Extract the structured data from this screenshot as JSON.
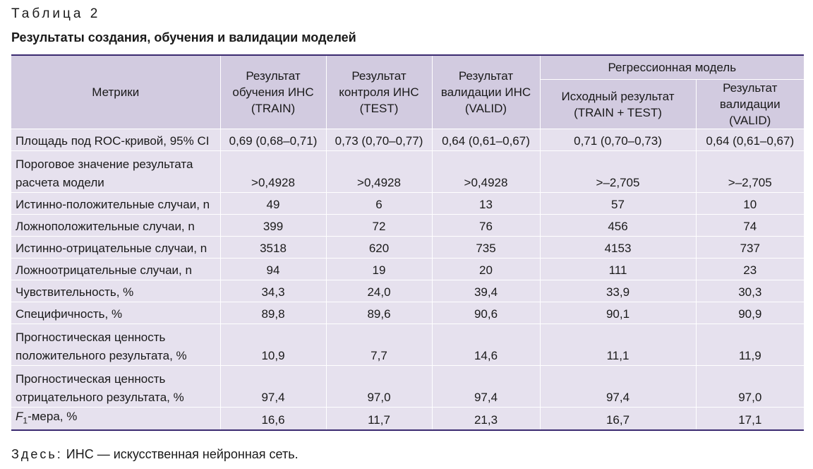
{
  "caption": "Таблица 2",
  "title": "Результаты создания, обучения и валидации моделей",
  "table": {
    "group_header": "Регрессионная модель",
    "headers": {
      "metrics": "Метрики",
      "train": [
        "Результат",
        "обучения ИНС",
        "(TRAIN)"
      ],
      "test": [
        "Результат",
        "контроля ИНС",
        "(TEST)"
      ],
      "valid": [
        "Результат",
        "валидации ИНС",
        "(VALID)"
      ],
      "reg_initial": [
        "Исходный результат",
        "(TRAIN + TEST)"
      ],
      "reg_valid": [
        "Результат",
        "валидации (VALID)"
      ]
    },
    "rows": [
      {
        "metric": [
          "Площадь под ROC-кривой, 95% CI"
        ],
        "values": [
          "0,69 (0,68–0,71)",
          "0,73 (0,70–0,77)",
          "0,64 (0,61–0,67)",
          "0,71 (0,70–0,73)",
          "0,64 (0,61–0,67)"
        ]
      },
      {
        "metric": [
          "Пороговое значение результата",
          "расчета модели"
        ],
        "values": [
          ">0,4928",
          ">0,4928",
          ">0,4928",
          ">–2,705",
          ">–2,705"
        ]
      },
      {
        "metric": [
          "Истинно-положительные случаи, n"
        ],
        "values": [
          "49",
          "6",
          "13",
          "57",
          "10"
        ]
      },
      {
        "metric": [
          "Ложноположительные случаи, n"
        ],
        "values": [
          "399",
          "72",
          "76",
          "456",
          "74"
        ]
      },
      {
        "metric": [
          "Истинно-отрицательные случаи, n"
        ],
        "values": [
          "3518",
          "620",
          "735",
          "4153",
          "737"
        ]
      },
      {
        "metric": [
          "Ложноотрицательные случаи, n"
        ],
        "values": [
          "94",
          "19",
          "20",
          "111",
          "23"
        ]
      },
      {
        "metric": [
          "Чувствительность, %"
        ],
        "values": [
          "34,3",
          "24,0",
          "39,4",
          "33,9",
          "30,3"
        ]
      },
      {
        "metric": [
          "Специфичность, %"
        ],
        "values": [
          "89,8",
          "89,6",
          "90,6",
          "90,1",
          "90,9"
        ]
      },
      {
        "metric": [
          "Прогностическая ценность",
          "положительного результата, %"
        ],
        "values": [
          "10,9",
          "7,7",
          "14,6",
          "11,1",
          "11,9"
        ]
      },
      {
        "metric": [
          "Прогностическая ценность",
          "отрицательного результата, %"
        ],
        "values": [
          "97,4",
          "97,0",
          "97,4",
          "97,4",
          "97,0"
        ]
      },
      {
        "metric_parts": {
          "italic": "F",
          "sub": "1",
          "rest": "-мера, %"
        },
        "values": [
          "16,6",
          "11,7",
          "21,3",
          "16,7",
          "17,1"
        ]
      }
    ]
  },
  "note": {
    "label": "Здесь:",
    "text": " ИНС — искусственная нейронная сеть."
  }
}
